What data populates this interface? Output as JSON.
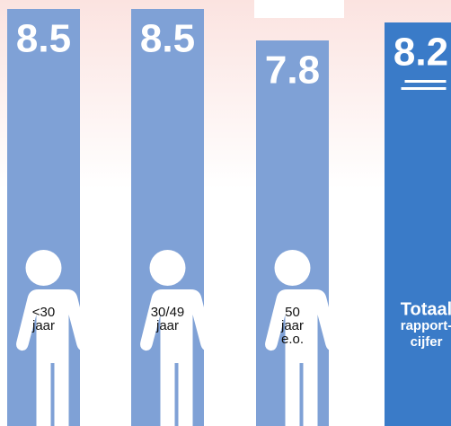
{
  "chart_data": {
    "type": "bar",
    "categories": [
      [
        "<30",
        "jaar"
      ],
      [
        "30/49",
        "jaar"
      ],
      [
        "50",
        "jaar",
        "e.o."
      ],
      [
        "Totaal",
        "rapport-",
        "cijfer"
      ]
    ],
    "values": [
      8.5,
      8.5,
      7.8,
      8.2
    ],
    "colors": [
      "#7fa1d6",
      "#7fa1d6",
      "#7fa1d6",
      "#3a7bc8"
    ]
  }
}
